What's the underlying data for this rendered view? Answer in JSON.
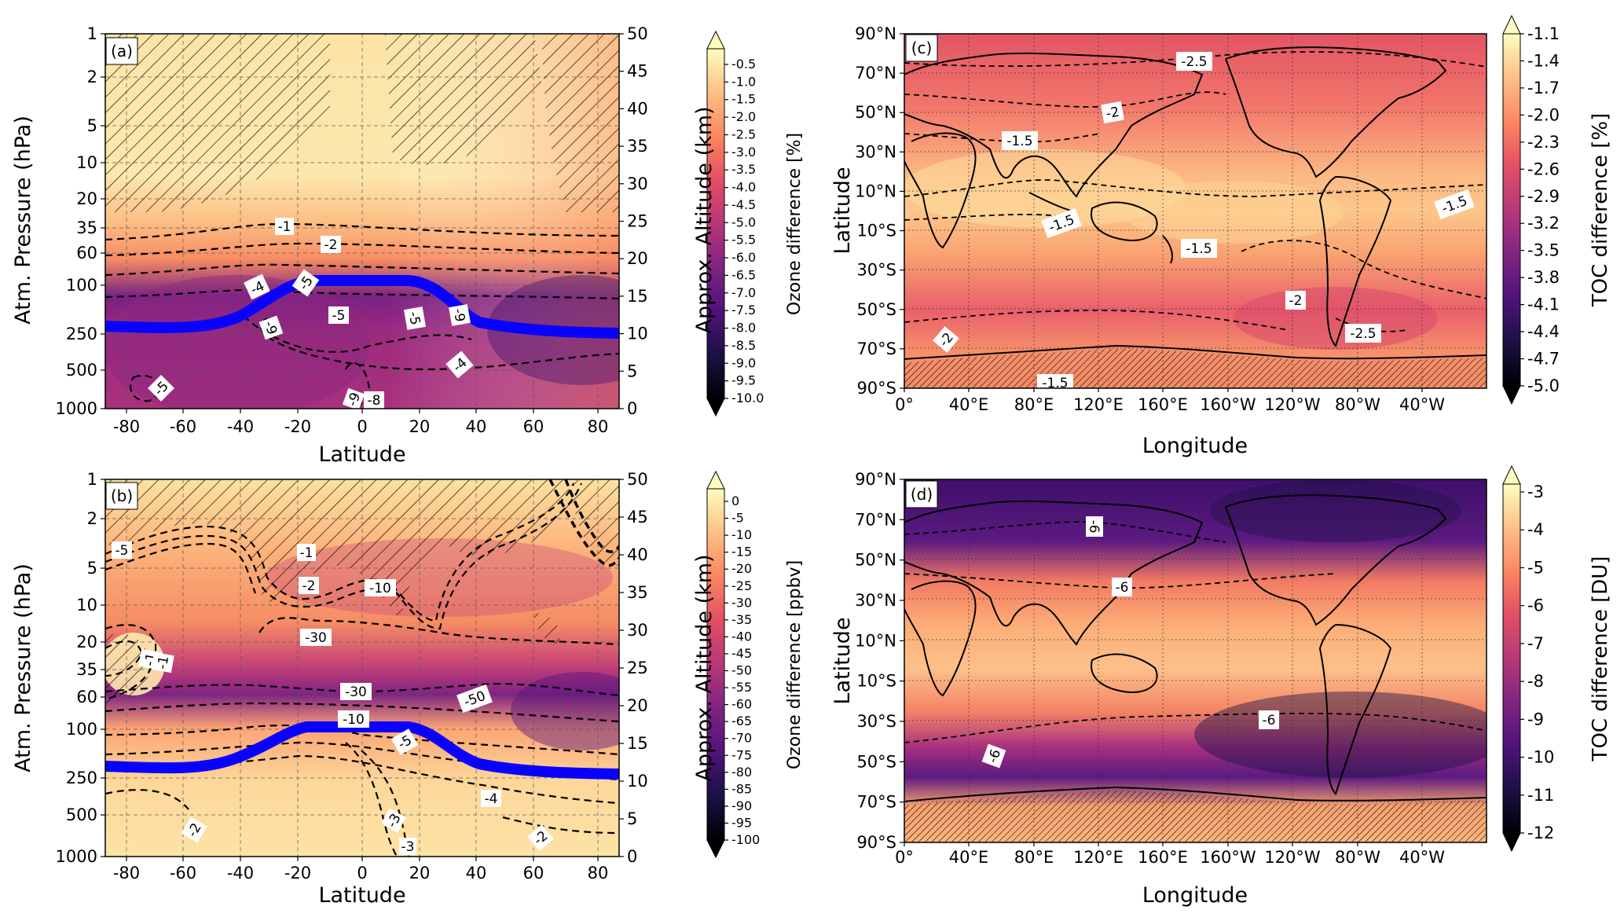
{
  "colors": {
    "cmap": [
      "#fcfdbf",
      "#fec287",
      "#fb8761",
      "#e55064",
      "#b73779",
      "#812581",
      "#51127c",
      "#1d1147",
      "#000004"
    ],
    "tropopause": "#0a00ff",
    "contour": "#000000",
    "hatch": "#000000",
    "land": "#000000"
  },
  "chart_data": [
    {
      "id": "a",
      "type": "heatmap",
      "panel_label": "(a)",
      "xlabel": "Latitude",
      "ylabel": "Atm. Pressure (hPa)",
      "y2label": "Approx. Altitude (km)",
      "x_ticks": [
        "-80",
        "-60",
        "-40",
        "-20",
        "0",
        "20",
        "40",
        "60",
        "80"
      ],
      "y_ticks": [
        "1",
        "2",
        "5",
        "10",
        "20",
        "35",
        "60",
        "100",
        "250",
        "500",
        "1000"
      ],
      "y2_ticks": [
        "50",
        "45",
        "40",
        "35",
        "30",
        "25",
        "20",
        "15",
        "10",
        "5",
        "0"
      ],
      "xlim": [
        -90,
        90
      ],
      "ylim_hpa": [
        1000,
        1
      ],
      "colorbar": {
        "label": "Ozone difference [%]",
        "min": -10.0,
        "max": -0.5,
        "extend": "both",
        "ticks": [
          "-0.5",
          "-1.0",
          "-1.5",
          "-2.0",
          "-2.5",
          "-3.0",
          "-3.5",
          "-4.0",
          "-4.5",
          "-5.0",
          "-5.5",
          "-6.0",
          "-6.5",
          "-7.0",
          "-7.5",
          "-8.0",
          "-8.5",
          "-9.0",
          "-9.5",
          "-10.0"
        ]
      },
      "contour_labels": [
        "-1",
        "-2",
        "-4",
        "-5",
        "-5",
        "-9",
        "-5",
        "-9",
        "-4",
        "-5",
        "-9",
        "-8"
      ],
      "tropopause_km": [
        [
          -88,
          11.3
        ],
        [
          -60,
          10.9
        ],
        [
          -45,
          11.8
        ],
        [
          -30,
          14.5
        ],
        [
          -20,
          16.7
        ],
        [
          -10,
          17.0
        ],
        [
          15,
          17.0
        ],
        [
          25,
          16.4
        ],
        [
          35,
          13.2
        ],
        [
          48,
          11.2
        ],
        [
          65,
          10.6
        ],
        [
          88,
          10.4
        ]
      ]
    },
    {
      "id": "b",
      "type": "heatmap",
      "panel_label": "(b)",
      "xlabel": "Latitude",
      "ylabel": "Atm. Pressure (hPa)",
      "y2label": "Approx. Altitude (km)",
      "x_ticks": [
        "-80",
        "-60",
        "-40",
        "-20",
        "0",
        "20",
        "40",
        "60",
        "80"
      ],
      "y_ticks": [
        "1",
        "2",
        "5",
        "10",
        "20",
        "35",
        "60",
        "100",
        "250",
        "500",
        "1000"
      ],
      "y2_ticks": [
        "50",
        "45",
        "40",
        "35",
        "30",
        "25",
        "20",
        "15",
        "10",
        "5",
        "0"
      ],
      "xlim": [
        -90,
        90
      ],
      "ylim_hpa": [
        1000,
        1
      ],
      "colorbar": {
        "label": "Ozone difference [ppbv]",
        "min": -100,
        "max": 0,
        "extend": "both",
        "ticks": [
          "0",
          "-5",
          "-10",
          "-15",
          "-20",
          "-25",
          "-30",
          "-35",
          "-40",
          "-45",
          "-50",
          "-55",
          "-60",
          "-65",
          "-70",
          "-75",
          "-80",
          "-85",
          "-90",
          "-95",
          "-100"
        ]
      },
      "contour_labels": [
        "-5",
        "-1",
        "-2",
        "-10",
        "-1",
        "-30",
        "-1",
        "-30",
        "-50",
        "-10",
        "-5",
        "-4",
        "-3",
        "-3",
        "-2",
        "-2"
      ],
      "tropopause_km": [
        [
          -88,
          11.0
        ],
        [
          -60,
          10.8
        ],
        [
          -45,
          11.5
        ],
        [
          -30,
          14.3
        ],
        [
          -20,
          16.7
        ],
        [
          -10,
          17.0
        ],
        [
          15,
          17.0
        ],
        [
          25,
          16.4
        ],
        [
          35,
          13.2
        ],
        [
          48,
          11.0
        ],
        [
          65,
          10.5
        ],
        [
          88,
          10.4
        ]
      ]
    },
    {
      "id": "c",
      "type": "heatmap",
      "panel_label": "(c)",
      "xlabel": "Longitude",
      "ylabel": "Latitude",
      "x_ticks": [
        "0°",
        "40°E",
        "80°E",
        "120°E",
        "160°E",
        "160°W",
        "120°W",
        "80°W",
        "40°W"
      ],
      "y_ticks": [
        "90°N",
        "70°N",
        "50°N",
        "30°N",
        "10°N",
        "10°S",
        "30°S",
        "50°S",
        "70°S",
        "90°S"
      ],
      "colorbar": {
        "label": "TOC difference [%]",
        "min": -5.0,
        "max": -1.1,
        "extend": "both",
        "ticks": [
          "-1.1",
          "-1.4",
          "-1.7",
          "-2.0",
          "-2.3",
          "-2.6",
          "-2.9",
          "-3.2",
          "-3.5",
          "-3.8",
          "-4.1",
          "-4.4",
          "-4.7",
          "-5.0"
        ]
      },
      "contour_labels": [
        "-2.5",
        "-2",
        "-1.5",
        "-1.5",
        "-1.5",
        "-1.5",
        "-2",
        "-2.5",
        "-2",
        "-1.5"
      ]
    },
    {
      "id": "d",
      "type": "heatmap",
      "panel_label": "(d)",
      "xlabel": "Longitude",
      "ylabel": "Latitude",
      "x_ticks": [
        "0°",
        "40°E",
        "80°E",
        "120°E",
        "160°E",
        "160°W",
        "120°W",
        "80°W",
        "40°W"
      ],
      "y_ticks": [
        "90°N",
        "70°N",
        "50°N",
        "30°N",
        "10°N",
        "10°S",
        "30°S",
        "50°S",
        "70°S",
        "90°S"
      ],
      "colorbar": {
        "label": "TOC difference [DU]",
        "min": -12,
        "max": -3,
        "extend": "both",
        "ticks": [
          "-3",
          "-4",
          "-5",
          "-6",
          "-7",
          "-8",
          "-9",
          "-10",
          "-11",
          "-12"
        ]
      },
      "contour_labels": [
        "-6",
        "-6",
        "-6",
        "-6"
      ]
    }
  ]
}
